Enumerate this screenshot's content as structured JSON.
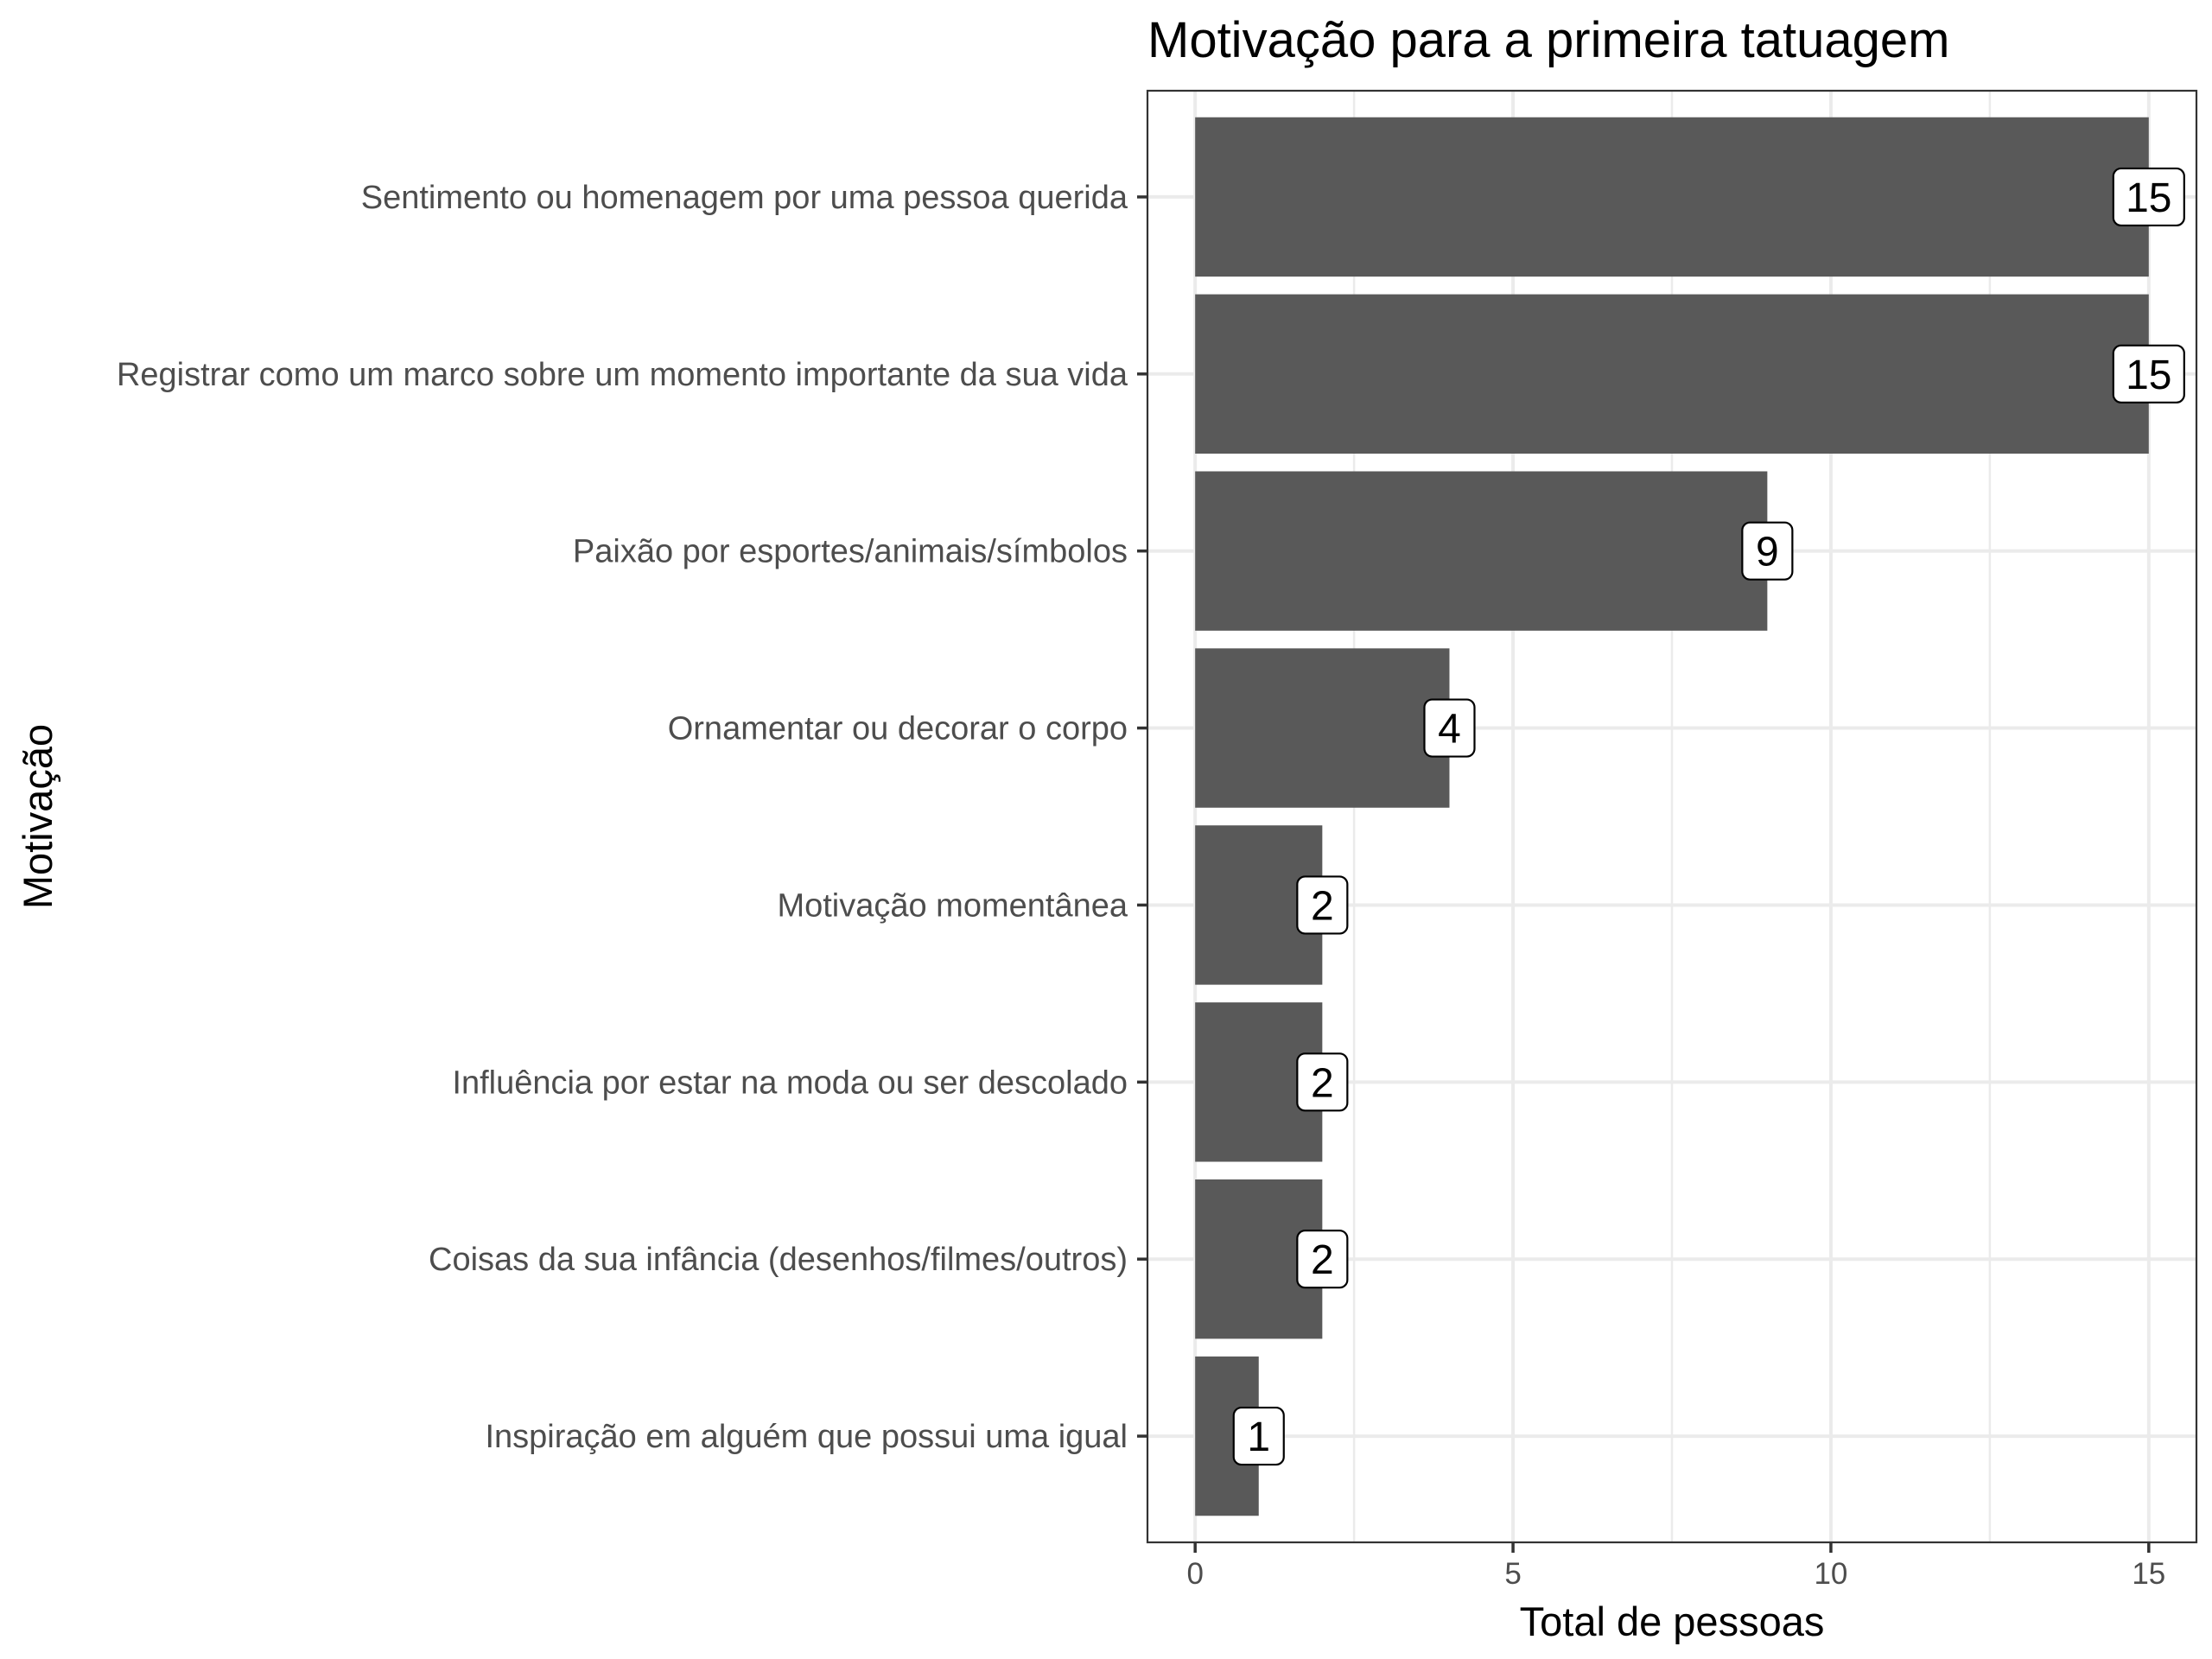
{
  "chart_data": {
    "type": "bar",
    "orientation": "horizontal",
    "title": "Motivação para a primeira tatuagem",
    "xlabel": "Total de pessoas",
    "ylabel": "Motivação",
    "categories": [
      "Sentimento ou homenagem por uma pessoa querida",
      "Registrar como um marco sobre um momento importante da sua vida",
      "Paixão por esportes/animais/símbolos",
      "Ornamentar ou decorar o corpo",
      "Motivação momentânea",
      "Influência por estar na moda ou ser descolado",
      "Coisas da sua infância (desenhos/filmes/outros)",
      "Inspiração em alguém que possui uma igual"
    ],
    "values": [
      15,
      15,
      9,
      4,
      2,
      2,
      2,
      1
    ],
    "data_labels": [
      "15",
      "15",
      "9",
      "4",
      "2",
      "2",
      "2",
      "1"
    ],
    "xlim": [
      -0.75,
      15.75
    ],
    "x_ticks": [
      0,
      5,
      10,
      15
    ],
    "x_tick_labels": [
      "0",
      "5",
      "10",
      "15"
    ],
    "grid": true,
    "legend": "none",
    "colors": {
      "bar": "#595959",
      "grid": "#ebebeb",
      "border": "#333333",
      "label_box": "#ffffff"
    }
  }
}
